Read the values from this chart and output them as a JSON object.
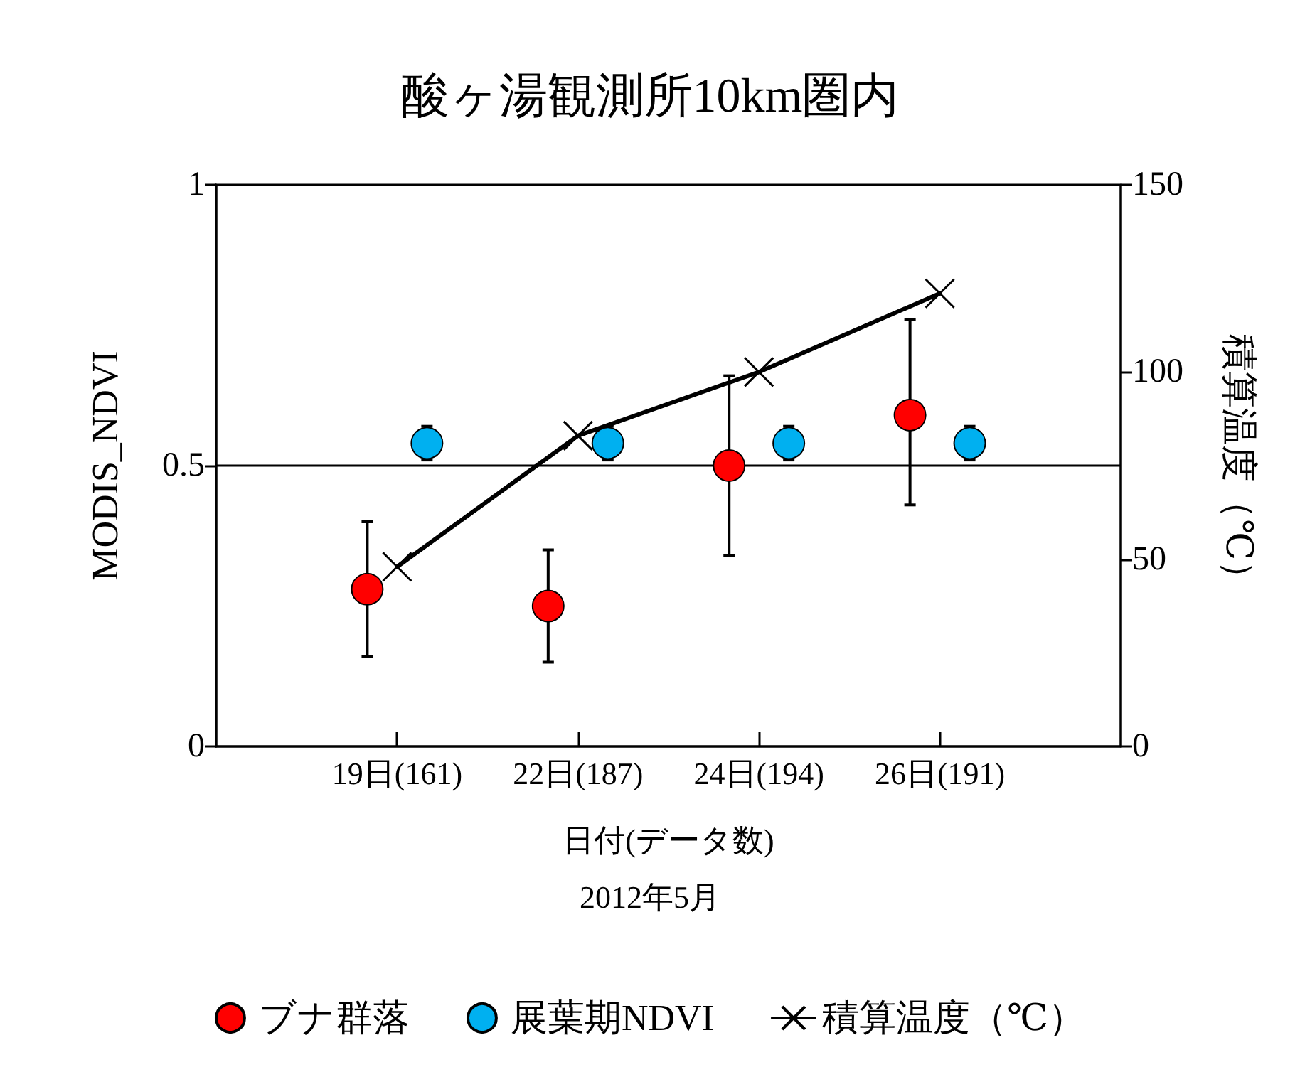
{
  "chart_data": {
    "type": "scatter",
    "title": "酸ヶ湯観測所10km圏内",
    "xlabel": "日付(データ数)",
    "annotations": [
      "2012年5月"
    ],
    "ylabel": "MODIS_NDVI",
    "y2label": "積算温度（℃）",
    "categories": [
      "19日(161)",
      "22日(187)",
      "24日(194)",
      "26日(191)"
    ],
    "ylim": [
      0,
      1
    ],
    "yticks": [
      0,
      0.5,
      1
    ],
    "y2lim": [
      0,
      150
    ],
    "y2ticks": [
      0,
      50,
      100,
      150
    ],
    "legend": "bottom",
    "ref_lines": [
      {
        "axis": "y",
        "value": 0.5,
        "color": "#000000"
      }
    ],
    "series": [
      {
        "name": "ブナ群落",
        "color": "#ff0000",
        "marker": "circle",
        "values": [
          0.28,
          0.25,
          0.5,
          0.59
        ],
        "errors": [
          [
            0.16,
            0.4
          ],
          [
            0.15,
            0.35
          ],
          [
            0.34,
            0.66
          ],
          [
            0.43,
            0.76
          ]
        ]
      },
      {
        "name": "展葉期NDVI",
        "color": "#00b0f0",
        "marker": "circle",
        "values": [
          0.54,
          0.54,
          0.54,
          0.54
        ],
        "errors": [
          [
            0.51,
            0.57
          ],
          [
            0.51,
            0.57
          ],
          [
            0.51,
            0.57
          ],
          [
            0.51,
            0.57
          ]
        ]
      },
      {
        "name": "積算温度（℃）",
        "type": "line",
        "axis": "y2",
        "color": "#000000",
        "marker": "cross",
        "values": [
          48,
          83,
          100,
          121
        ]
      }
    ]
  }
}
